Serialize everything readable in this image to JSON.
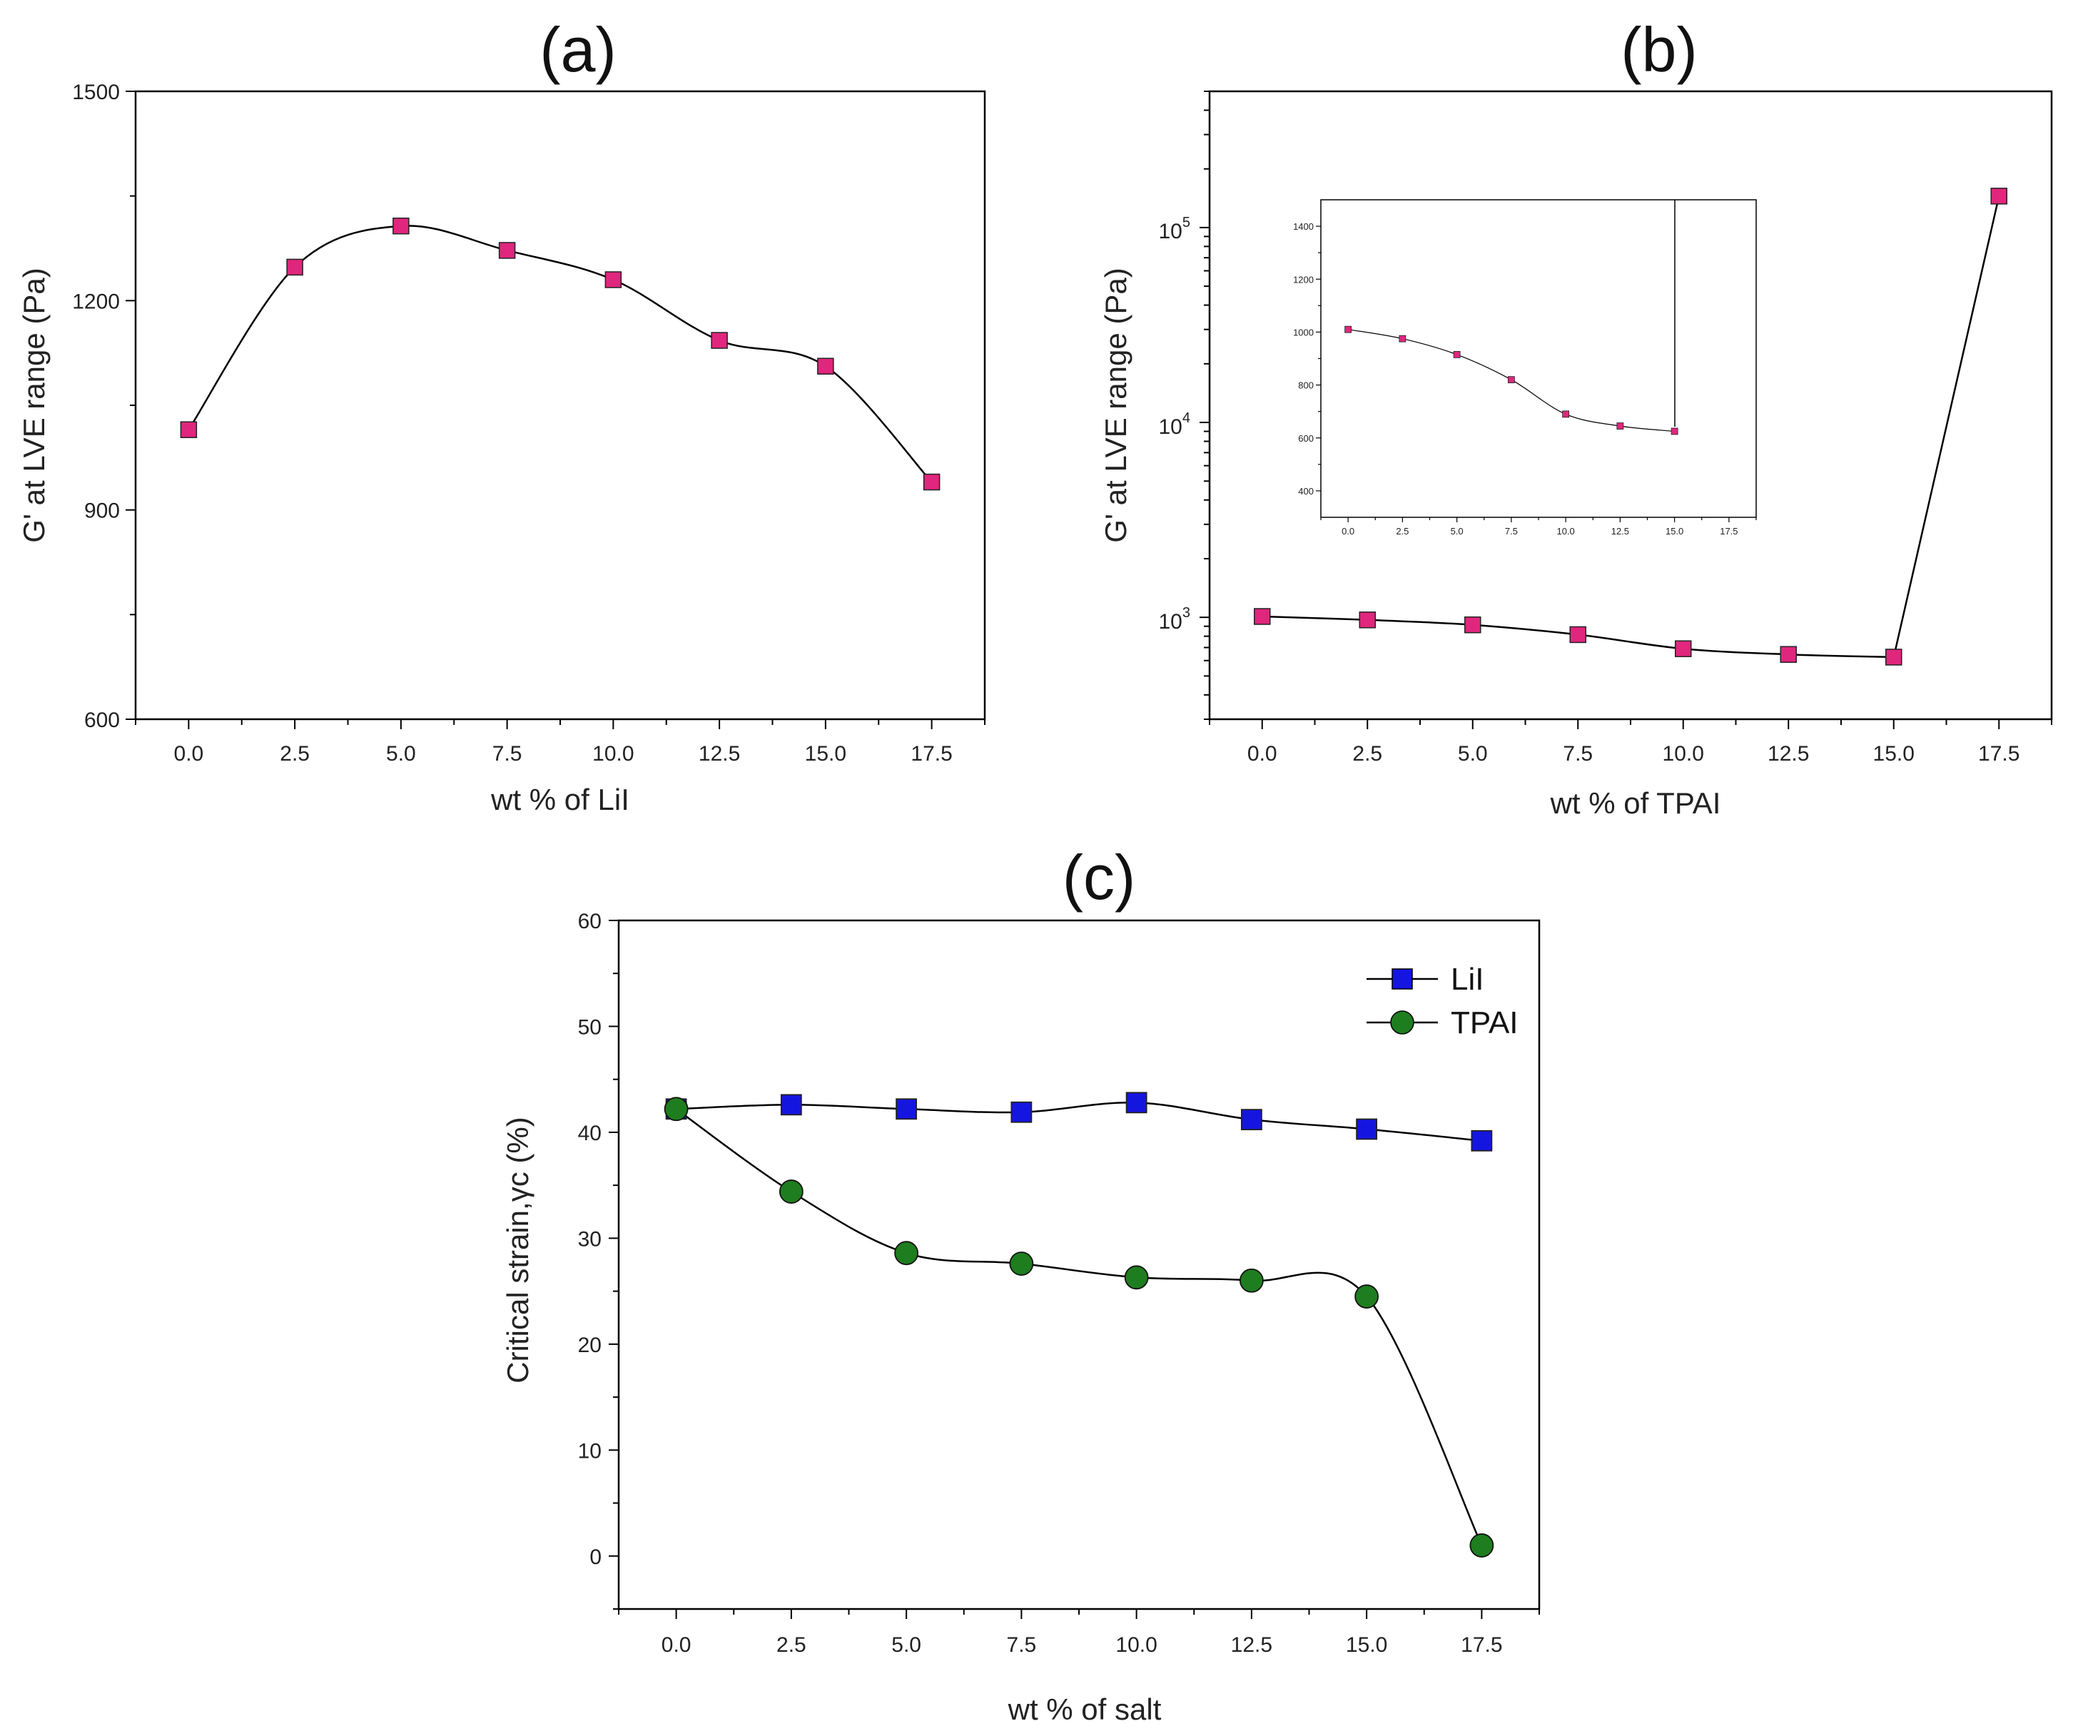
{
  "chart_data": [
    {
      "id": "a",
      "panel_label": "(a)",
      "type": "line",
      "xlabel": "wt % of LiI",
      "ylabel": "G' at LVE range (Pa)",
      "xlim": [
        -1.25,
        18.75
      ],
      "ylim": [
        600,
        1500
      ],
      "xticks": [
        "0.0",
        "2.5",
        "5.0",
        "7.5",
        "10.0",
        "12.5",
        "15.0",
        "17.5"
      ],
      "yticks": [
        "600",
        "900",
        "1200",
        "1500"
      ],
      "series": [
        {
          "name": "G'",
          "marker": "square",
          "color": "#e0267d",
          "x": [
            0,
            2.5,
            5,
            7.5,
            10,
            12.5,
            15,
            17.5
          ],
          "y": [
            1015,
            1248,
            1307,
            1272,
            1230,
            1143,
            1106,
            940
          ]
        }
      ]
    },
    {
      "id": "b",
      "panel_label": "(b)",
      "type": "line",
      "yscale": "log",
      "xlabel": "wt % of TPAI",
      "ylabel": "G' at LVE range (Pa)",
      "xlim": [
        -1.25,
        18.75
      ],
      "ylim": [
        300,
        500000
      ],
      "xticks": [
        "0.0",
        "2.5",
        "5.0",
        "7.5",
        "10.0",
        "12.5",
        "15.0",
        "17.5"
      ],
      "ytick_bases": [
        "10",
        "10",
        "10"
      ],
      "ytick_exps": [
        "3",
        "4",
        "5"
      ],
      "series": [
        {
          "name": "G'",
          "marker": "square",
          "color": "#e0267d",
          "x": [
            0,
            2.5,
            5,
            7.5,
            10,
            12.5,
            15,
            17.5
          ],
          "y": [
            1010,
            970,
            915,
            815,
            690,
            645,
            625,
            145000
          ]
        }
      ],
      "inset": {
        "type": "line",
        "xlim": [
          -1.25,
          18.75
        ],
        "ylim": [
          300,
          1500
        ],
        "xticks": [
          "0.0",
          "2.5",
          "5.0",
          "7.5",
          "10.0",
          "12.5",
          "15.0",
          "17.5"
        ],
        "yticks": [
          "400",
          "600",
          "800",
          "1000",
          "1200",
          "1400"
        ],
        "series": [
          {
            "name": "G'",
            "marker": "square",
            "color": "#e0267d",
            "x": [
              0,
              2.5,
              5,
              7.5,
              10,
              12.5,
              15
            ],
            "y": [
              1010,
              975,
              915,
              820,
              690,
              645,
              625
            ]
          }
        ]
      }
    },
    {
      "id": "c",
      "panel_label": "(c)",
      "type": "line",
      "xlabel": "wt % of salt",
      "ylabel": "Critical strain,γc (%)",
      "xlim": [
        -1.25,
        18.75
      ],
      "ylim": [
        -5,
        60
      ],
      "xticks": [
        "0.0",
        "2.5",
        "5.0",
        "7.5",
        "10.0",
        "12.5",
        "15.0",
        "17.5"
      ],
      "yticks": [
        "0",
        "10",
        "20",
        "30",
        "40",
        "50",
        "60"
      ],
      "legend_position": "top-right",
      "series": [
        {
          "name": "LiI",
          "marker": "square",
          "color": "#1515e0",
          "x": [
            0,
            2.5,
            5,
            7.5,
            10,
            12.5,
            15,
            17.5
          ],
          "y": [
            42.2,
            42.6,
            42.2,
            41.9,
            42.8,
            41.2,
            40.3,
            39.2
          ]
        },
        {
          "name": "TPAI",
          "marker": "circle",
          "color": "#1e7d1e",
          "x": [
            0,
            2.5,
            5,
            7.5,
            10,
            12.5,
            15,
            17.5
          ],
          "y": [
            42.2,
            34.4,
            28.6,
            27.6,
            26.3,
            26.0,
            24.5,
            1.0
          ]
        }
      ]
    }
  ]
}
